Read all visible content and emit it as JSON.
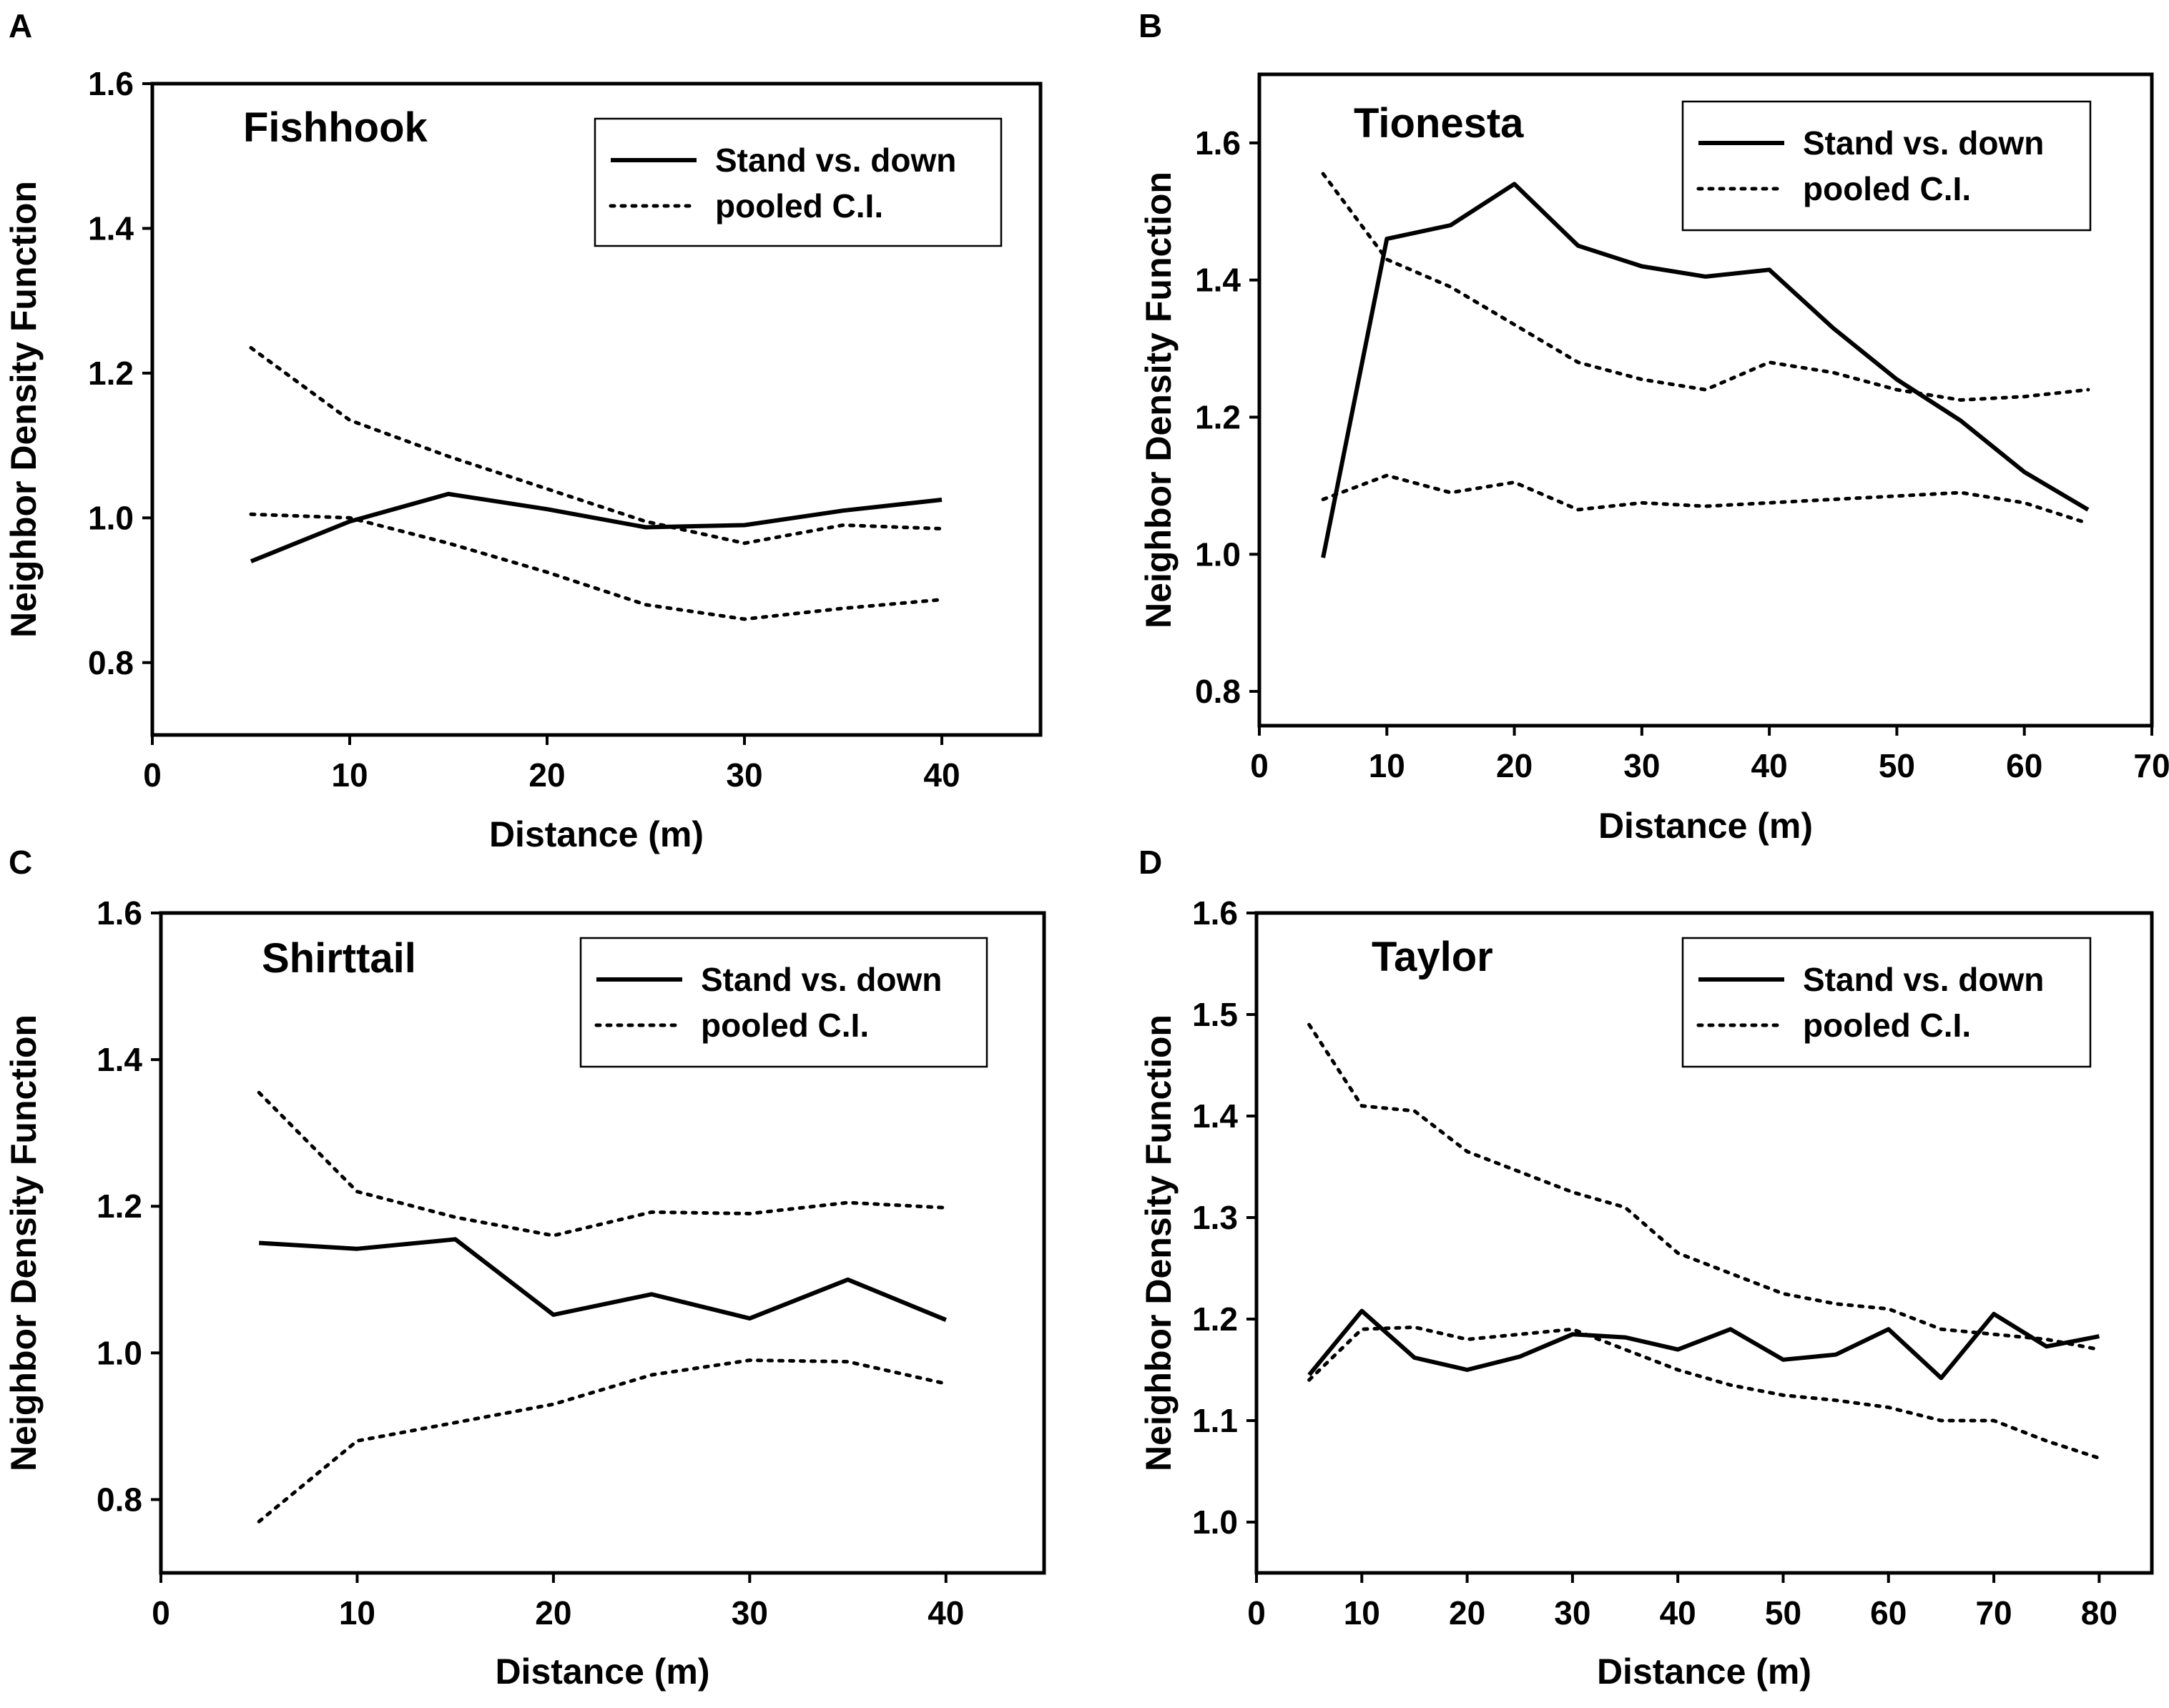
{
  "figure": {
    "legend": {
      "solid": "Stand vs. down",
      "dotted": "pooled C.I."
    },
    "xlabel": "Distance (m)",
    "ylabel": "Neighbor Density Function"
  },
  "chart_data": [
    {
      "type": "line",
      "panel": "A",
      "title": "Fishhook",
      "xlabel": "Distance (m)",
      "ylabel": "Neighbor Density Function",
      "xlim": [
        0,
        45
      ],
      "ylim": [
        0.7,
        1.6
      ],
      "xticks": [
        0,
        10,
        20,
        30,
        40
      ],
      "yticks": [
        "0.8",
        "1.0",
        "1.2",
        "1.4",
        "1.6"
      ],
      "legend_position": "top-right",
      "series": [
        {
          "name": "Stand vs. down",
          "style": "solid",
          "x": [
            5,
            10,
            15,
            20,
            25,
            30,
            35,
            40
          ],
          "values": [
            0.94,
            0.995,
            1.033,
            1.012,
            0.987,
            0.99,
            1.01,
            1.025
          ]
        },
        {
          "name": "pooled C.I.",
          "style": "dotted",
          "x": [
            5,
            10,
            15,
            20,
            25,
            30,
            35,
            40
          ],
          "values": [
            1.235,
            1.135,
            1.085,
            1.04,
            0.995,
            0.965,
            0.99,
            0.985
          ]
        },
        {
          "name": "pooled C.I. (lower)",
          "style": "dotted",
          "x": [
            5,
            10,
            15,
            20,
            25,
            30,
            35,
            40
          ],
          "values": [
            1.005,
            1.0,
            0.965,
            0.925,
            0.88,
            0.86,
            0.875,
            0.887
          ]
        }
      ]
    },
    {
      "type": "line",
      "panel": "B",
      "title": "Tionesta",
      "xlabel": "Distance (m)",
      "ylabel": "Neighbor Density Function",
      "xlim": [
        0,
        70
      ],
      "ylim": [
        0.75,
        1.7
      ],
      "xticks": [
        0,
        10,
        20,
        30,
        40,
        50,
        60,
        70
      ],
      "yticks": [
        "0.8",
        "1.0",
        "1.2",
        "1.4",
        "1.6"
      ],
      "legend_position": "top-right",
      "series": [
        {
          "name": "Stand vs. down",
          "style": "solid",
          "x": [
            5,
            10,
            15,
            20,
            25,
            30,
            35,
            40,
            45,
            50,
            55,
            60,
            65
          ],
          "values": [
            0.995,
            1.46,
            1.48,
            1.54,
            1.45,
            1.42,
            1.405,
            1.415,
            1.33,
            1.255,
            1.195,
            1.12,
            1.065
          ]
        },
        {
          "name": "pooled C.I.",
          "style": "dotted",
          "x": [
            5,
            10,
            15,
            20,
            25,
            30,
            35,
            40,
            45,
            50,
            55,
            60,
            65
          ],
          "values": [
            1.555,
            1.43,
            1.39,
            1.335,
            1.28,
            1.255,
            1.24,
            1.28,
            1.265,
            1.24,
            1.225,
            1.23,
            1.24
          ]
        },
        {
          "name": "pooled C.I. (lower)",
          "style": "dotted",
          "x": [
            5,
            10,
            15,
            20,
            25,
            30,
            35,
            40,
            45,
            50,
            55,
            60,
            65
          ],
          "values": [
            1.08,
            1.115,
            1.09,
            1.105,
            1.065,
            1.075,
            1.07,
            1.075,
            1.08,
            1.085,
            1.09,
            1.075,
            1.045
          ]
        }
      ]
    },
    {
      "type": "line",
      "panel": "C",
      "title": "Shirttail",
      "xlabel": "Distance (m)",
      "ylabel": "Neighbor Density Function",
      "xlim": [
        0,
        45
      ],
      "ylim": [
        0.7,
        1.6
      ],
      "xticks": [
        0,
        10,
        20,
        30,
        40
      ],
      "yticks": [
        "0.8",
        "1.0",
        "1.2",
        "1.4",
        "1.6"
      ],
      "legend_position": "top-right",
      "series": [
        {
          "name": "Stand vs. down",
          "style": "solid",
          "x": [
            5,
            10,
            15,
            20,
            25,
            30,
            35,
            40
          ],
          "values": [
            1.15,
            1.142,
            1.155,
            1.052,
            1.08,
            1.047,
            1.1,
            1.045
          ]
        },
        {
          "name": "pooled C.I.",
          "style": "dotted",
          "x": [
            5,
            10,
            15,
            20,
            25,
            30,
            35,
            40
          ],
          "values": [
            1.355,
            1.22,
            1.185,
            1.16,
            1.192,
            1.19,
            1.205,
            1.198
          ]
        },
        {
          "name": "pooled C.I. (lower)",
          "style": "dotted",
          "x": [
            5,
            10,
            15,
            20,
            25,
            30,
            35,
            40
          ],
          "values": [
            0.77,
            0.88,
            0.905,
            0.93,
            0.97,
            0.99,
            0.988,
            0.958
          ]
        }
      ]
    },
    {
      "type": "line",
      "panel": "D",
      "title": "Taylor",
      "xlabel": "Distance (m)",
      "ylabel": "Neighbor Density Function",
      "xlim": [
        0,
        85
      ],
      "ylim": [
        0.95,
        1.6
      ],
      "xticks": [
        0,
        10,
        20,
        30,
        40,
        50,
        60,
        70,
        80
      ],
      "yticks": [
        "1.0",
        "1.1",
        "1.2",
        "1.3",
        "1.4",
        "1.5",
        "1.6"
      ],
      "legend_position": "top-right",
      "series": [
        {
          "name": "Stand vs. down",
          "style": "solid",
          "x": [
            5,
            10,
            15,
            20,
            25,
            30,
            35,
            40,
            45,
            50,
            55,
            60,
            65,
            70,
            75,
            80
          ],
          "values": [
            1.145,
            1.208,
            1.162,
            1.15,
            1.163,
            1.185,
            1.182,
            1.17,
            1.19,
            1.16,
            1.165,
            1.19,
            1.142,
            1.205,
            1.173,
            1.183
          ]
        },
        {
          "name": "pooled C.I.",
          "style": "dotted",
          "x": [
            5,
            10,
            15,
            20,
            25,
            30,
            35,
            40,
            45,
            50,
            55,
            60,
            65,
            70,
            75,
            80
          ],
          "values": [
            1.49,
            1.41,
            1.405,
            1.365,
            1.345,
            1.325,
            1.31,
            1.265,
            1.245,
            1.225,
            1.215,
            1.21,
            1.19,
            1.185,
            1.18,
            1.17
          ]
        },
        {
          "name": "pooled C.I. (lower)",
          "style": "dotted",
          "x": [
            5,
            10,
            15,
            20,
            25,
            30,
            35,
            40,
            45,
            50,
            55,
            60,
            65,
            70,
            75,
            80
          ],
          "values": [
            1.14,
            1.19,
            1.192,
            1.18,
            1.185,
            1.19,
            1.17,
            1.15,
            1.135,
            1.125,
            1.12,
            1.113,
            1.1,
            1.1,
            1.08,
            1.063
          ]
        }
      ]
    }
  ]
}
